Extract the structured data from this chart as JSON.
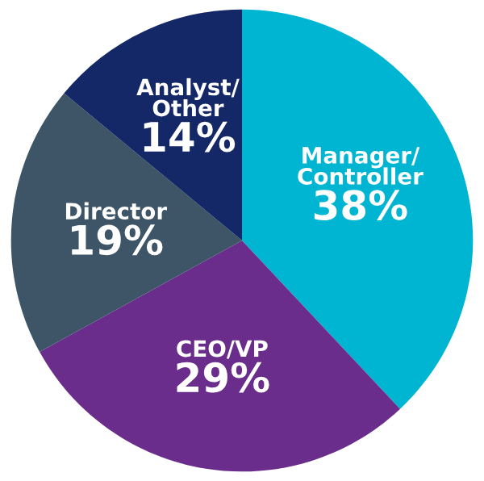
{
  "chart_data": {
    "type": "pie",
    "categories": [
      "Manager/\nController",
      "CEO/VP",
      "Director",
      "Analyst/\nOther"
    ],
    "values": [
      38,
      29,
      19,
      14
    ],
    "value_labels": [
      "38%",
      "29%",
      "19%",
      "14%"
    ],
    "colors": [
      "#00b5d1",
      "#6a2d8c",
      "#3d5566",
      "#142766"
    ]
  }
}
